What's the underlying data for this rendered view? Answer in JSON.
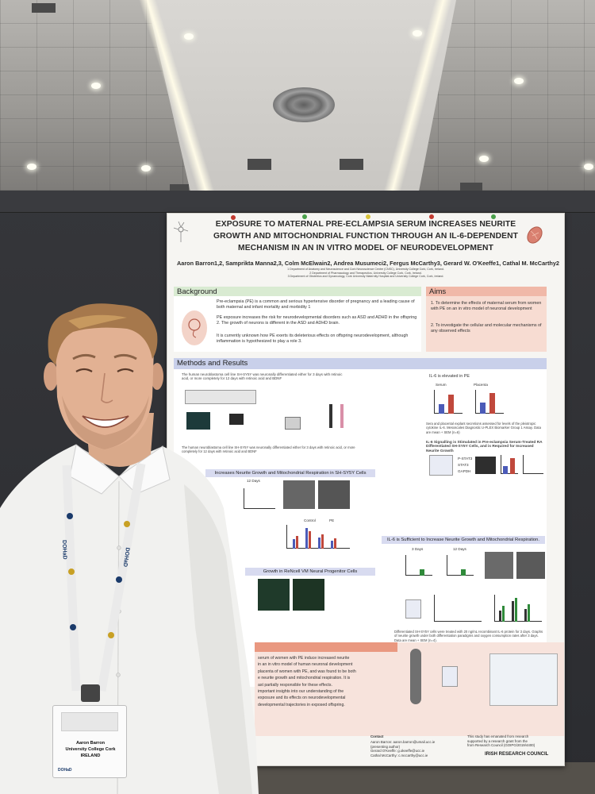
{
  "poster": {
    "title_lines": [
      "EXPOSURE TO MATERNAL PRE-ECLAMPSIA SERUM INCREASES NEURITE",
      "GROWTH AND MITOCHONDRIAL FUNCTION THROUGH AN IL-6-DEPENDENT",
      "MECHANISM IN AN IN VITRO MODEL OF NEURODEVELOPMENT"
    ],
    "authors": "Aaron Barron1,2, Samprikta Manna2,3, Colm McElwain2, Andrea Musumeci2, Fergus McCarthy3, Gerard W. O'Keeffe1, Cathal M. McCarthy2",
    "affiliations": [
      "1 Department of Anatomy and Neuroscience and Cork Neuroscience Centre (CNSC), University College Cork, Cork, Ireland.",
      "2 Department of Pharmacology and Therapeutics, University College Cork, Cork, Ireland.",
      "3 Department of Obstetrics and Gynaecology, Cork University Maternity Hospital and University College Cork, Cork, Ireland."
    ],
    "background_heading": "Background",
    "background_paras": [
      "Pre-eclampsia (PE) is a common and serious hypertensive disorder of pregnancy and a leading cause of both maternal and infant mortality and morbidity 1",
      "PE exposure increases the risk for neurodevelopmental disorders such as ASD and ADHD in the offspring 2. The growth of neurons is different in the ASD and ADHD brain.",
      "It is currently unknown how PE exerts its deleterious effects on offspring neurodevelopment, although inflammation is hypothesized to play a role 3."
    ],
    "aims_heading": "Aims",
    "aims_paras": [
      "1. To determine the effects of maternal serum from women with PE on an in vitro model of neuronal development",
      "2. To investigate the cellular and molecular mechanisms of any observed effects"
    ],
    "methods_heading": "Methods and Results",
    "methods_text": "The human neuroblastoma cell line SH-SY5Y was neuronally differentiated either for 3 days with retinoic acid, or more completely for 12 days with retinoic acid and BDNF",
    "il6_elevated": "IL-6 is elevated in PE",
    "serum_label": "Serum",
    "placenta_label": "Placenta",
    "sera_caption": "Sera and placental explant secretions assessed for levels of the pleiotropic cytokine IL-6. Mesoscales Diagnostic U-PLEX Biomarker Group 1 Assay. Data are mean + SEM (n=6)",
    "il6_signalling": "IL-6 Signalling is Stimulated in Pre-eclampsia Serum-Treated RA Differentiated SH-SY5Y Cells, and is Required for Increased Neurite Growth",
    "il6_sufficient": "IL-6 is Sufficient to Increase Neurite Growth and Mitochondrial Respiration.",
    "days3": "3 Days",
    "days12": "12 Days",
    "control_label": "Control",
    "pe_label": "PE",
    "il6_label": "IL-6",
    "neurite_bar": "Increases Neurite Growth and Mitochondrial Respiration in SH-SY5Y Cells",
    "renal_bar": "Growth in ReNcell VM Neural Progenitor Cells",
    "blot_labels": [
      "P-STAT3",
      "STAT3",
      "GAPDH"
    ],
    "final_caption": "Differentiated SH-SY5Y cells were treated with 20 ng/mL recombinant IL-6 protein for 3 days. Graphs of neurite growth under both differentiation paradigms and oxygen consumption rates after 3 days. Data are mean + SEM (n=4).",
    "conclusion_lines": [
      "serum of women with PE induce increased neurite",
      "in an in vitro model of human neuronal development",
      "placenta of women with PE, and was found to be both",
      "e neurite growth and mitochondrial respiration. It is",
      "ast partially responsible for these effects.",
      "important insights into our understanding of the",
      "exposure and its effects on neurodevelopmental",
      "developmental trajectories in exposed offspring."
    ],
    "contact_heading": "Contact",
    "contact_lines": [
      "Aaron Barron: aaron.barron@umail.ucc.ie",
      "(presenting author)",
      "Gerard O'Keeffe: g.okeeffe@ucc.ie",
      "Cathal McCarthy: c.mccarthy@ucc.ie"
    ],
    "funding_lines": [
      "This study has emanated from research",
      "supported by a research grant from the",
      "from Research Council (GOIPG/2019/4400)"
    ],
    "irc_logo": "IRISH RESEARCH COUNCIL",
    "colors": {
      "accent_pink": "#e99880",
      "section_green": "#d9ebd2",
      "section_blue": "#c9d0ea",
      "bar_blue": "#4b5bb8",
      "bar_red": "#c0483c"
    }
  },
  "badge": {
    "name": "Aaron Barron",
    "institution": "University College Cork",
    "country": "IRELAND",
    "lanyard_text": "DOHaD"
  }
}
